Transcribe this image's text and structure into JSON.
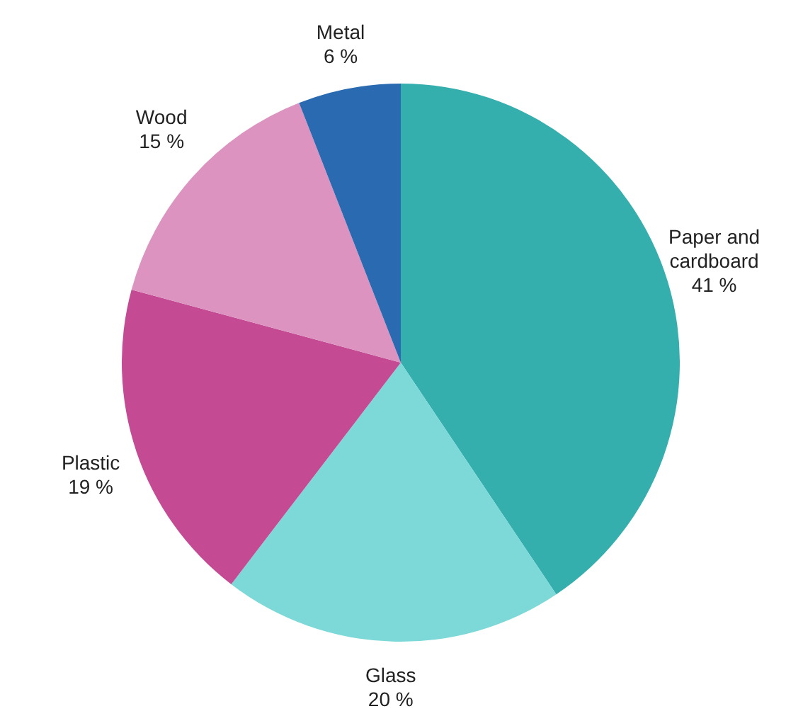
{
  "chart_data": {
    "type": "pie",
    "categories": [
      "Paper and cardboard",
      "Glass",
      "Plastic",
      "Wood",
      "Metal"
    ],
    "values": [
      41,
      20,
      19,
      15,
      6
    ],
    "colors": [
      "#35aeae",
      "#7dd8d8",
      "#c44a93",
      "#dc93c0",
      "#2a6ab0"
    ],
    "value_labels": [
      "41 %",
      "20 %",
      "19 %",
      "15 %",
      "6 %"
    ]
  }
}
